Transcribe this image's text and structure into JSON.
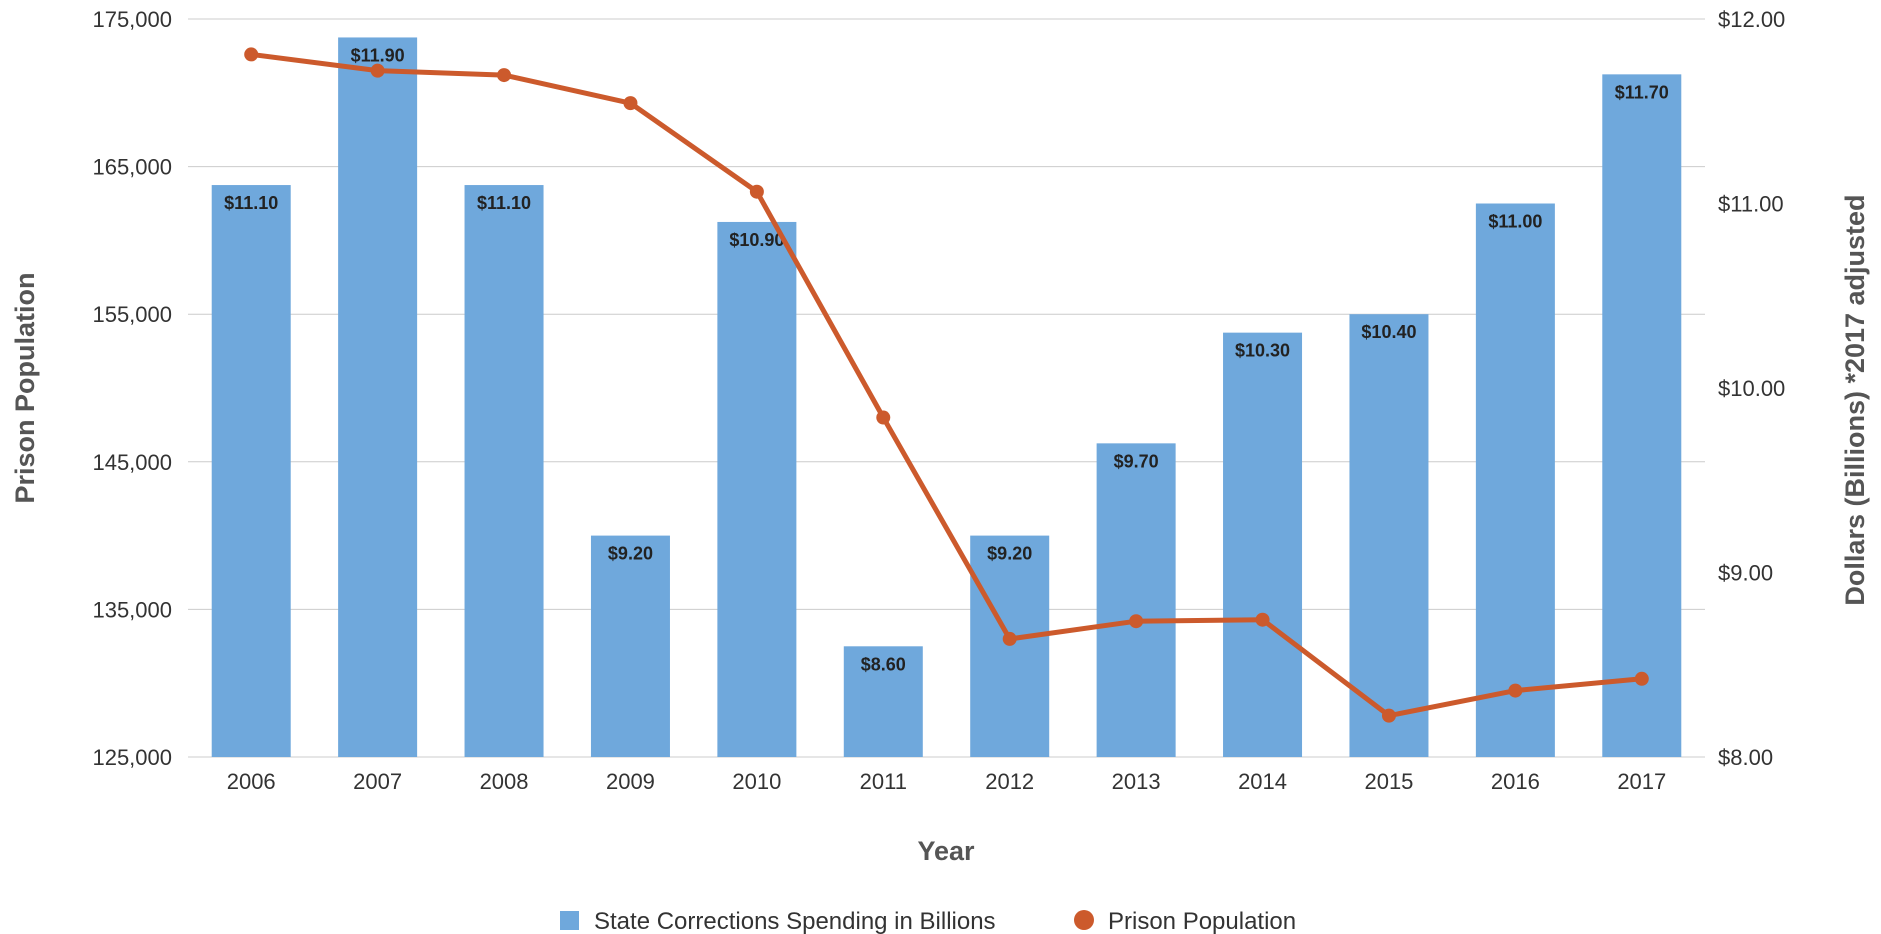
{
  "chart_data": {
    "type": "bar+line",
    "title": "",
    "xlabel": "Year",
    "ylabel_left": "Prison Population",
    "ylabel_right": "Dollars (Billions) *2017 adjusted",
    "categories": [
      "2006",
      "2007",
      "2008",
      "2009",
      "2010",
      "2011",
      "2012",
      "2013",
      "2014",
      "2015",
      "2016",
      "2017"
    ],
    "ylim_left": [
      125000,
      175000
    ],
    "ylim_right": [
      8.0,
      12.0
    ],
    "left_ticks": [
      "125,000",
      "135,000",
      "145,000",
      "155,000",
      "165,000",
      "175,000"
    ],
    "right_ticks": [
      "$8.00",
      "$9.00",
      "$10.00",
      "$11.00",
      "$12.00"
    ],
    "grid": true,
    "legend_position": "bottom",
    "series": [
      {
        "name": "State Corrections Spending in Billions",
        "type": "bar",
        "axis": "right",
        "color": "#6fa8dc",
        "values": [
          11.1,
          11.9,
          11.1,
          9.2,
          10.9,
          8.6,
          9.2,
          9.7,
          10.3,
          10.4,
          11.0,
          11.7
        ],
        "labels": [
          "$11.10",
          "$11.90",
          "$11.10",
          "$9.20",
          "$10.90",
          "$8.60",
          "$9.20",
          "$9.70",
          "$10.30",
          "$10.40",
          "$11.00",
          "$11.70"
        ]
      },
      {
        "name": "Prison Population",
        "type": "line",
        "axis": "left",
        "color": "#cc5a2c",
        "values": [
          172600,
          171500,
          171200,
          169300,
          163300,
          148000,
          133000,
          134200,
          134300,
          127800,
          129500,
          130300
        ]
      }
    ]
  }
}
